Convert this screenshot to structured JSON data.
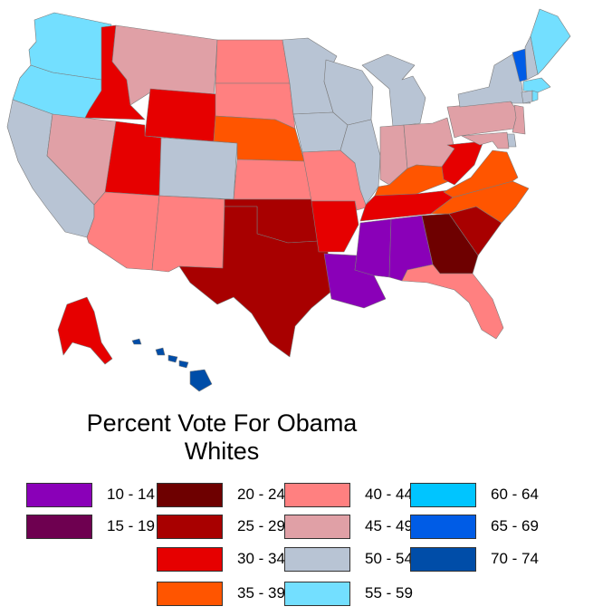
{
  "title": {
    "line1": "Percent Vote For Obama",
    "line2": "Whites"
  },
  "colors": {
    "p10_14": "#8a00b8",
    "p15_19": "#6e0050",
    "p20_24": "#6e0000",
    "p25_29": "#a80000",
    "p30_34": "#e60000",
    "p35_39": "#ff5500",
    "p40_44": "#ff8080",
    "p45_49": "#e0a0a6",
    "p50_54": "#b8c4d4",
    "p55_59": "#73dfff",
    "p60_64": "#00c5ff",
    "p65_69": "#005ce6",
    "p70_74": "#004da8",
    "border": "#7a7a7a"
  },
  "legend": [
    {
      "label": "10 - 14",
      "key": "p10_14"
    },
    {
      "label": "15 - 19",
      "key": "p15_19"
    },
    {
      "label": "20 - 24",
      "key": "p20_24"
    },
    {
      "label": "25 - 29",
      "key": "p25_29"
    },
    {
      "label": "30 - 34",
      "key": "p30_34"
    },
    {
      "label": "35 - 39",
      "key": "p35_39"
    },
    {
      "label": "40 - 44",
      "key": "p40_44"
    },
    {
      "label": "45 - 49",
      "key": "p45_49"
    },
    {
      "label": "50 - 54",
      "key": "p50_54"
    },
    {
      "label": "55 - 59",
      "key": "p55_59"
    },
    {
      "label": "60 - 64",
      "key": "p60_64"
    },
    {
      "label": "65 - 69",
      "key": "p65_69"
    },
    {
      "label": "70 - 74",
      "key": "p70_74"
    }
  ],
  "states": {
    "WA": "55 - 59",
    "OR": "55 - 59",
    "CA": "50 - 54",
    "ID": "30 - 34",
    "NV": "45 - 49",
    "MT": "45 - 49",
    "WY": "30 - 34",
    "UT": "30 - 34",
    "AZ": "40 - 44",
    "CO": "50 - 54",
    "NM": "40 - 44",
    "ND": "40 - 44",
    "SD": "40 - 44",
    "NE": "35 - 39",
    "KS": "40 - 44",
    "OK": "25 - 29",
    "TX": "25 - 29",
    "MN": "50 - 54",
    "IA": "50 - 54",
    "MO": "40 - 44",
    "AR": "30 - 34",
    "LA": "10 - 14",
    "WI": "50 - 54",
    "IL": "50 - 54",
    "MI": "50 - 54",
    "IN": "45 - 49",
    "OH": "45 - 49",
    "KY": "35 - 39",
    "TN": "30 - 34",
    "MS": "10 - 14",
    "AL": "10 - 14",
    "GA": "20 - 24",
    "FL": "40 - 44",
    "SC": "25 - 29",
    "NC": "35 - 39",
    "VA": "35 - 39",
    "WV": "30 - 34",
    "PA": "45 - 49",
    "NY": "50 - 54",
    "VT": "65 - 69",
    "NH": "50 - 54",
    "ME": "55 - 59",
    "MA": "55 - 59",
    "CT": "50 - 54",
    "NJ": "45 - 49",
    "MD": "45 - 49",
    "DE": "50 - 54",
    "RI": "55 - 59",
    "AK": "30 - 34",
    "HI": "70 - 74"
  }
}
